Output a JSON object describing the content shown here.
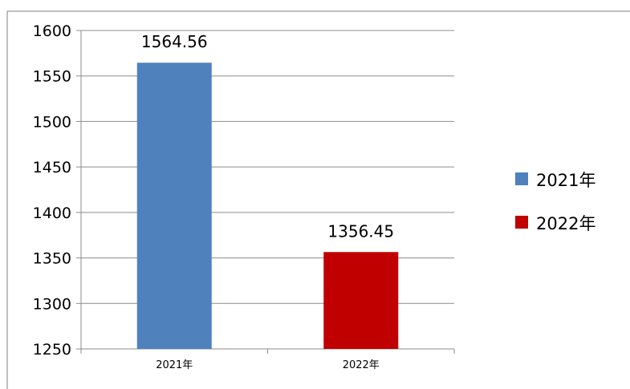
{
  "chart_data": {
    "type": "bar",
    "categories": [
      "2021年",
      "2022年"
    ],
    "values": [
      1564.56,
      1356.45
    ],
    "data_labels": [
      "1564.56",
      "1356.45"
    ],
    "colors": [
      "#4F81BD",
      "#C00000"
    ],
    "legend": {
      "position": "right",
      "entries": [
        {
          "label": "2021年",
          "color": "#4F81BD"
        },
        {
          "label": "2022年",
          "color": "#C00000"
        }
      ]
    },
    "ylim": [
      1250,
      1600
    ],
    "yticks": [
      1250,
      1300,
      1350,
      1400,
      1450,
      1500,
      1550,
      1600
    ],
    "grid": true,
    "title": "",
    "xlabel": "",
    "ylabel": ""
  }
}
